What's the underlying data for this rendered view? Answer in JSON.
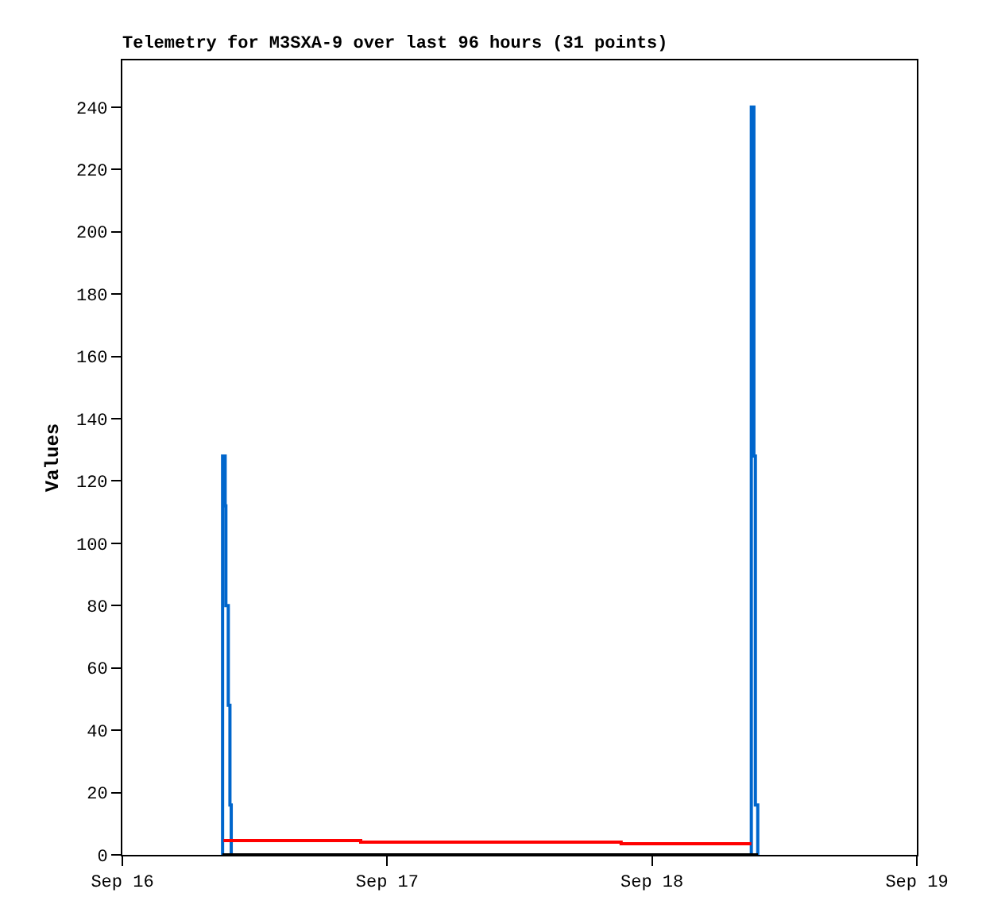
{
  "chart_data": {
    "type": "step",
    "title": "Telemetry for M3SXA-9 over last 96 hours (31 points)",
    "ylabel": "Values",
    "series": [
      {
        "color": "#0066cc",
        "x": [
          "--09-16T09:04",
          "--09-16T09:05",
          "--09-16T09:19",
          "--09-16T09:23",
          "--09-16T09:36",
          "--09-16T09:45",
          "--09-16T09:52",
          null,
          "--09-18T08:59",
          "--09-18T09:00",
          "--09-18T09:14",
          "--09-18T09:22",
          "--09-18T09:35"
        ],
        "values": [
          0,
          128,
          112,
          80,
          48,
          16,
          0,
          null,
          0,
          240,
          128,
          16,
          0
        ]
      },
      {
        "color": "#ff0000",
        "x": [
          "--09-16T09:10",
          "--09-16T21:36",
          "--09-17T21:12",
          "--09-18T09:00"
        ],
        "values": [
          4.6,
          4.1,
          3.6,
          3.6
        ]
      },
      {
        "color": "#000000",
        "x": [
          "--09-16T09:04",
          "--09-18T09:36"
        ],
        "values": [
          0,
          0
        ]
      }
    ],
    "xlim": [
      "--09-16",
      "--09-19"
    ],
    "xticks": [
      {
        "value": "--09-16",
        "label": "Sep 16"
      },
      {
        "value": "--09-17",
        "label": "Sep 17"
      },
      {
        "value": "--09-18",
        "label": "Sep 18"
      },
      {
        "value": "--09-19",
        "label": "Sep 19"
      }
    ],
    "ylim": [
      0,
      255
    ],
    "yticks": [
      0,
      20,
      40,
      60,
      80,
      100,
      120,
      140,
      160,
      180,
      200,
      220,
      240
    ],
    "grid": false
  }
}
